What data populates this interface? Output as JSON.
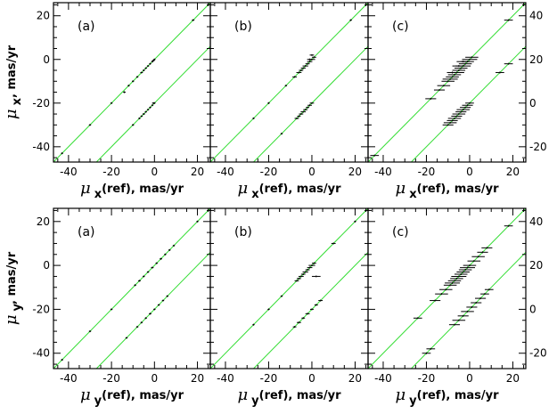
{
  "figure": {
    "rows": [
      {
        "id": "row-x",
        "y_title": {
          "mu": "μ",
          "sub": "x",
          "suffix": ", mas/yr"
        },
        "x_title": {
          "mu": "μ",
          "sub": "x",
          "suffix": "(ref),  mas/yr"
        },
        "panel_ylims": [
          [
            -47,
            26
          ],
          [
            -47,
            26
          ],
          [
            -27,
            46
          ]
        ],
        "right_ticks": [
          "40",
          "20",
          "0",
          "-20"
        ]
      },
      {
        "id": "row-y",
        "y_title": {
          "mu": "μ",
          "sub": "y",
          "suffix": ", mas/yr"
        },
        "x_title": {
          "mu": "μ",
          "sub": "y",
          "suffix": "(ref),  mas/yr"
        },
        "panel_ylims": [
          [
            -47,
            26
          ],
          [
            -47,
            26
          ],
          [
            -27,
            46
          ]
        ],
        "right_ticks": [
          "40",
          "20",
          "0",
          "-20"
        ]
      }
    ],
    "left_ticks": [
      "20",
      "0",
      "-20",
      "-40"
    ],
    "x_ticks": [
      "-40",
      "-20",
      "0",
      "20"
    ]
  },
  "chart_data": [
    {
      "type": "scatter",
      "row": "x",
      "panels": [
        {
          "letter": "(a)",
          "xlim": [
            -47,
            26
          ],
          "ylim": [
            -47,
            26
          ],
          "line_offsets": [
            0,
            -20
          ],
          "points": [
            [
              -14,
              -15,
              0.6
            ],
            [
              -12,
              -12,
              0.5
            ],
            [
              -10,
              -10,
              0.5
            ],
            [
              -8,
              -8,
              0.5
            ],
            [
              -6,
              -6,
              0.6
            ],
            [
              -5,
              -5,
              0.5
            ],
            [
              -4,
              -4,
              0.5
            ],
            [
              -3,
              -3,
              0.5
            ],
            [
              -2,
              -2,
              0.5
            ],
            [
              -1,
              -1,
              0.5
            ],
            [
              -0.5,
              -0.5,
              0.6
            ],
            [
              0,
              0,
              0.5
            ],
            [
              -7,
              -27,
              0.5
            ],
            [
              -6,
              -26,
              0.5
            ],
            [
              -5,
              -25,
              0.6
            ],
            [
              -4,
              -24,
              0.5
            ],
            [
              -3,
              -23,
              0.5
            ],
            [
              -2,
              -22,
              0.5
            ],
            [
              -1,
              -21,
              0.5
            ],
            [
              -0.5,
              -20,
              0.6
            ],
            [
              0,
              -20,
              0.5
            ],
            [
              -10,
              -30,
              0.5
            ],
            [
              -20,
              -20,
              0.5
            ],
            [
              -30,
              -30,
              0.5
            ],
            [
              18,
              18,
              0.6
            ],
            [
              -43,
              -43,
              0.5
            ]
          ]
        },
        {
          "letter": "(b)",
          "xlim": [
            -47,
            26
          ],
          "ylim": [
            -47,
            26
          ],
          "line_offsets": [
            0,
            -20
          ],
          "points": [
            [
              -8,
              -8,
              1
            ],
            [
              -6,
              -6,
              1.2
            ],
            [
              -5,
              -5,
              1
            ],
            [
              -4,
              -4,
              1.1
            ],
            [
              -3,
              -3,
              1.3
            ],
            [
              -2,
              -2,
              1
            ],
            [
              -1,
              -1,
              1.2
            ],
            [
              0,
              0,
              1.5
            ],
            [
              1,
              1,
              1
            ],
            [
              0,
              2,
              1
            ],
            [
              -1,
              0,
              1.2
            ],
            [
              -7,
              -27,
              1
            ],
            [
              -6,
              -26,
              0.8
            ],
            [
              -5,
              -25,
              1
            ],
            [
              -4,
              -24,
              1.2
            ],
            [
              -3,
              -23,
              1
            ],
            [
              -2,
              -22,
              0.8
            ],
            [
              -1,
              -21,
              1
            ],
            [
              0,
              -20,
              1
            ],
            [
              -12,
              -12,
              0.5
            ],
            [
              -20,
              -20,
              0.5
            ],
            [
              -14,
              -34,
              0.5
            ],
            [
              -27,
              -27,
              0.5
            ],
            [
              18,
              18,
              0.5
            ]
          ]
        },
        {
          "letter": "(c)",
          "xlim": [
            -47,
            26
          ],
          "ylim": [
            -27,
            46
          ],
          "line_offsets": [
            20,
            0
          ],
          "points": [
            [
              -18,
              2,
              2.5
            ],
            [
              -14,
              6,
              2.5
            ],
            [
              -12,
              8,
              3
            ],
            [
              -10,
              10,
              3
            ],
            [
              -9,
              11,
              3.5
            ],
            [
              -8,
              12,
              3
            ],
            [
              -7,
              13,
              3
            ],
            [
              -6,
              14,
              3.5
            ],
            [
              -5,
              15,
              3
            ],
            [
              -4,
              16,
              3
            ],
            [
              -3,
              17,
              3.5
            ],
            [
              -2,
              18,
              3
            ],
            [
              -1,
              19,
              3
            ],
            [
              0,
              20,
              3.5
            ],
            [
              1,
              21,
              3
            ],
            [
              -3,
              19,
              3
            ],
            [
              -5,
              17,
              3
            ],
            [
              -8,
              14,
              2.5
            ],
            [
              -10,
              -10,
              2.5
            ],
            [
              -9,
              -9,
              3
            ],
            [
              -8,
              -8,
              2.5
            ],
            [
              -7,
              -7,
              3
            ],
            [
              -6,
              -6,
              2.5
            ],
            [
              -5,
              -5,
              3
            ],
            [
              -4,
              -4,
              2.5
            ],
            [
              -3,
              -3,
              3
            ],
            [
              -2,
              -2,
              2.5
            ],
            [
              -1,
              -1,
              2.5
            ],
            [
              0,
              0,
              2
            ],
            [
              -44,
              -24,
              2
            ],
            [
              18,
              38,
              2
            ],
            [
              18,
              18,
              2
            ],
            [
              14,
              14,
              2
            ]
          ]
        }
      ]
    },
    {
      "type": "scatter",
      "row": "y",
      "panels": [
        {
          "letter": "(a)",
          "xlim": [
            -47,
            26
          ],
          "ylim": [
            -47,
            26
          ],
          "line_offsets": [
            0,
            -20
          ],
          "points": [
            [
              -9,
              -9,
              0.5
            ],
            [
              -7,
              -7,
              0.6
            ],
            [
              -5,
              -5,
              0.5
            ],
            [
              -3,
              -3,
              0.5
            ],
            [
              -1,
              -1,
              0.6
            ],
            [
              1,
              1,
              0.5
            ],
            [
              3,
              3,
              0.6
            ],
            [
              5,
              5,
              0.5
            ],
            [
              7,
              7,
              0.5
            ],
            [
              9,
              9,
              0.5
            ],
            [
              -8,
              -28,
              0.5
            ],
            [
              -6,
              -26,
              0.5
            ],
            [
              -4,
              -24,
              0.5
            ],
            [
              -2,
              -22,
              0.6
            ],
            [
              0,
              -20,
              0.5
            ],
            [
              2,
              -18,
              0.5
            ],
            [
              4,
              -16,
              0.5
            ],
            [
              6,
              -14,
              0.5
            ],
            [
              -13,
              -33,
              0.5
            ],
            [
              -20,
              -20,
              0.5
            ],
            [
              -30,
              -30,
              0.5
            ],
            [
              20,
              20,
              0.5
            ],
            [
              -43,
              -43,
              0.5
            ]
          ]
        },
        {
          "letter": "(b)",
          "xlim": [
            -47,
            26
          ],
          "ylim": [
            -47,
            26
          ],
          "line_offsets": [
            0,
            -20
          ],
          "points": [
            [
              -7,
              -7,
              1
            ],
            [
              -6,
              -6,
              1
            ],
            [
              -5,
              -5,
              1.2
            ],
            [
              -4,
              -4,
              1
            ],
            [
              -3,
              -3,
              1.3
            ],
            [
              -2,
              -2,
              1
            ],
            [
              -1,
              -1,
              1.2
            ],
            [
              0,
              0,
              1.5
            ],
            [
              1,
              1,
              1
            ],
            [
              2,
              -5,
              2
            ],
            [
              -8,
              -28,
              0.8
            ],
            [
              -6,
              -26,
              1
            ],
            [
              -4,
              -24,
              0.8
            ],
            [
              -2,
              -22,
              1
            ],
            [
              0,
              -20,
              0.8
            ],
            [
              2,
              -18,
              0.8
            ],
            [
              4,
              -16,
              1
            ],
            [
              10,
              10,
              1
            ],
            [
              -14,
              -14,
              0.5
            ],
            [
              -20,
              -20,
              0.5
            ],
            [
              -27,
              -27,
              0.5
            ],
            [
              20,
              20,
              0.5
            ]
          ]
        },
        {
          "letter": "(c)",
          "xlim": [
            -47,
            26
          ],
          "ylim": [
            -27,
            46
          ],
          "line_offsets": [
            20,
            0
          ],
          "points": [
            [
              -16,
              4,
              2.5
            ],
            [
              -13,
              7,
              3
            ],
            [
              -11,
              9,
              3
            ],
            [
              -9,
              11,
              3
            ],
            [
              -8,
              12,
              3.5
            ],
            [
              -7,
              13,
              3
            ],
            [
              -6,
              14,
              3
            ],
            [
              -5,
              15,
              3.5
            ],
            [
              -4,
              16,
              3
            ],
            [
              -3,
              17,
              3
            ],
            [
              -2,
              18,
              3
            ],
            [
              -1,
              19,
              3.5
            ],
            [
              0,
              20,
              3
            ],
            [
              2,
              22,
              3
            ],
            [
              4,
              24,
              3
            ],
            [
              6,
              26,
              2.5
            ],
            [
              8,
              28,
              2.5
            ],
            [
              -7,
              -7,
              2.5
            ],
            [
              -5,
              -5,
              3
            ],
            [
              -3,
              -3,
              2.5
            ],
            [
              -1,
              -1,
              3
            ],
            [
              1,
              1,
              2.5
            ],
            [
              3,
              3,
              2.5
            ],
            [
              5,
              5,
              2.5
            ],
            [
              7,
              7,
              2
            ],
            [
              9,
              9,
              2
            ],
            [
              -24,
              -4,
              2
            ],
            [
              -18,
              -18,
              2
            ],
            [
              -20,
              -20,
              2
            ],
            [
              18,
              38,
              2
            ]
          ]
        }
      ]
    }
  ]
}
